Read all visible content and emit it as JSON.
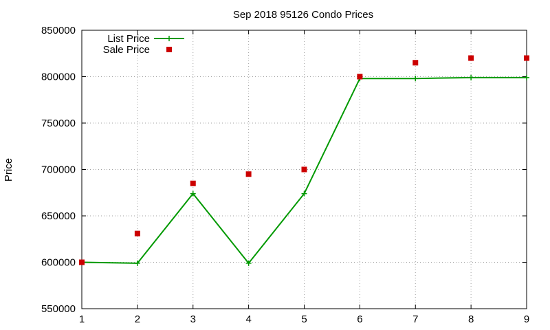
{
  "chart_data": {
    "type": "line",
    "title": "Sep 2018 95126 Condo Prices",
    "xlabel": "",
    "ylabel": "Price",
    "x_ticks": [
      1,
      2,
      3,
      4,
      5,
      6,
      7,
      8,
      9
    ],
    "y_ticks": [
      550000,
      600000,
      650000,
      700000,
      750000,
      800000,
      850000
    ],
    "xlim": [
      1,
      9
    ],
    "ylim": [
      550000,
      850000
    ],
    "grid": true,
    "legend_position": "top-left",
    "series": [
      {
        "name": "List Price",
        "style": "line-with-plus-markers",
        "color": "#009900",
        "points": [
          [
            1,
            600000
          ],
          [
            2,
            599000
          ],
          [
            3,
            674000
          ],
          [
            4,
            599000
          ],
          [
            5,
            674000
          ],
          [
            6,
            798000
          ],
          [
            7,
            798000
          ],
          [
            8,
            799000
          ],
          [
            9,
            799000
          ]
        ]
      },
      {
        "name": "Sale Price",
        "style": "square-markers",
        "color": "#cc0000",
        "points": [
          [
            1,
            600000
          ],
          [
            2,
            631000
          ],
          [
            3,
            685000
          ],
          [
            4,
            695000
          ],
          [
            5,
            700000
          ],
          [
            6,
            800000
          ],
          [
            7,
            815000
          ],
          [
            8,
            820000
          ],
          [
            9,
            820000
          ]
        ]
      }
    ]
  }
}
